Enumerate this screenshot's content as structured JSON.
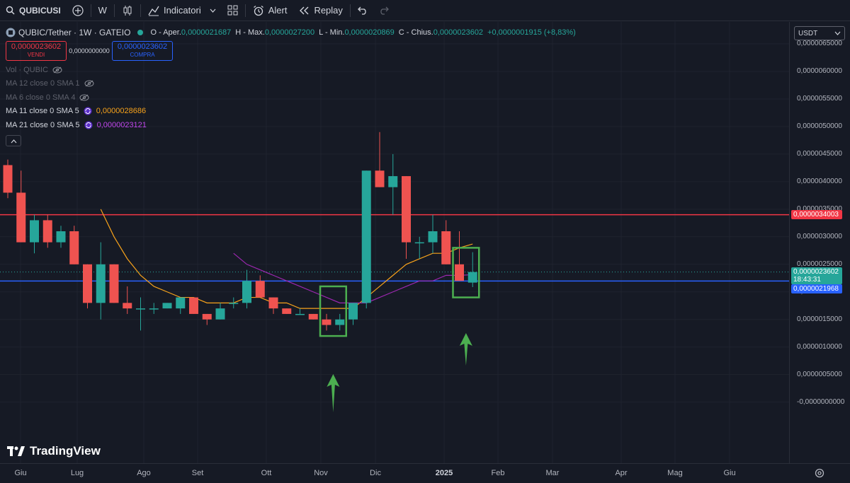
{
  "toolbar": {
    "symbol": "QUBICUSI",
    "interval": "W",
    "indicators_label": "Indicatori",
    "alert_label": "Alert",
    "replay_label": "Replay"
  },
  "legend": {
    "title": "QUBIC/Tether · 1W · GATEIO",
    "open_key": "O - Aper.",
    "open_val": "0,0000021687",
    "high_key": "H - Max.",
    "high_val": "0,0000027200",
    "low_key": "L - Min.",
    "low_val": "0,0000020869",
    "close_key": "C - Chius.",
    "close_val": "0,0000023602",
    "change_val": "+0,0000001915 (+8,83%)",
    "sell_price": "0,0000023602",
    "sell_label": "VENDI",
    "spread": "0,0000000000",
    "buy_price": "0,0000023602",
    "buy_label": "COMPRA",
    "indicators": [
      {
        "label": "Vol · QUBIC",
        "value": "",
        "visible": false
      },
      {
        "label": "MA 12 close 0 SMA 1",
        "value": "",
        "visible": false
      },
      {
        "label": "MA 6 close 0 SMA 4",
        "value": "",
        "visible": false
      },
      {
        "label": "MA 11 close 0 SMA 5",
        "value": "0,0000028686",
        "visible": true,
        "color": "#f7a21b"
      },
      {
        "label": "MA 21 close 0 SMA 5",
        "value": "0,0000023121",
        "visible": true,
        "color": "#9c27b0"
      }
    ]
  },
  "price_axis": {
    "currency": "USDT",
    "labels": [
      "0,0000065000",
      "0,0000060000",
      "0,0000055000",
      "0,0000050000",
      "0,0000045000",
      "0,0000040000",
      "0,0000035000",
      "0,0000030000",
      "0,0000025000",
      "0,0000020000",
      "0,0000015000",
      "0,0000010000",
      "0,0000005000",
      "-0,0000000000"
    ],
    "red_line_tag": "0,0000034003",
    "current_tag": "0,0000023602",
    "countdown": "18:43:31",
    "blue_line_tag": "0,0000021968"
  },
  "time_axis": {
    "labels": [
      "Giu",
      "Lug",
      "Ago",
      "Set",
      "Ott",
      "Nov",
      "Dic",
      "2025",
      "Feb",
      "Mar",
      "Apr",
      "Mag",
      "Giu"
    ]
  },
  "watermark": "TradingView",
  "colors": {
    "up": "#26a69a",
    "down": "#ef5350",
    "red_line": "#f23645",
    "blue_line": "#2962ff",
    "ma11": "#f7a21b",
    "ma21": "#9c27b0",
    "highlight": "#4caf50"
  },
  "chart_data": {
    "type": "candlestick",
    "title": "QUBIC/Tether · 1W · GATEIO",
    "y_unit": "USDT",
    "ylim": [
      -8e-07,
      6.5e-06
    ],
    "x": [
      "Giu",
      "Lug",
      "Ago",
      "Set",
      "Ott",
      "Nov",
      "Dic",
      "2025",
      "Feb",
      "Mar",
      "Apr",
      "Mag",
      "Giu"
    ],
    "horizontal_lines": [
      3.4003e-06,
      2.1968e-06
    ],
    "candles": [
      {
        "o": 4.3e-06,
        "h": 4.4e-06,
        "l": 3.7e-06,
        "c": 3.8e-06
      },
      {
        "o": 3.8e-06,
        "h": 4.2e-06,
        "l": 2.9e-06,
        "c": 2.9e-06
      },
      {
        "o": 2.9e-06,
        "h": 3.4e-06,
        "l": 2.7e-06,
        "c": 3.3e-06
      },
      {
        "o": 3.3e-06,
        "h": 3.4e-06,
        "l": 2.8e-06,
        "c": 2.9e-06
      },
      {
        "o": 2.9e-06,
        "h": 3.2e-06,
        "l": 2.8e-06,
        "c": 3.1e-06
      },
      {
        "o": 3.1e-06,
        "h": 3.2e-06,
        "l": 2.5e-06,
        "c": 2.5e-06
      },
      {
        "o": 2.5e-06,
        "h": 2.5e-06,
        "l": 1.7e-06,
        "c": 1.8e-06
      },
      {
        "o": 1.8e-06,
        "h": 2.9e-06,
        "l": 1.5e-06,
        "c": 2.5e-06
      },
      {
        "o": 2.5e-06,
        "h": 2.5e-06,
        "l": 1.8e-06,
        "c": 1.8e-06
      },
      {
        "o": 1.8e-06,
        "h": 2.1e-06,
        "l": 1.6e-06,
        "c": 1.7e-06
      },
      {
        "o": 1.7e-06,
        "h": 1.9e-06,
        "l": 1.3e-06,
        "c": 1.7e-06
      },
      {
        "o": 1.7e-06,
        "h": 1.8e-06,
        "l": 1.6e-06,
        "c": 1.7e-06
      },
      {
        "o": 1.7e-06,
        "h": 1.8e-06,
        "l": 1.7e-06,
        "c": 1.8e-06
      },
      {
        "o": 1.7e-06,
        "h": 1.9e-06,
        "l": 1.6e-06,
        "c": 1.9e-06
      },
      {
        "o": 1.9e-06,
        "h": 1.9e-06,
        "l": 1.6e-06,
        "c": 1.6e-06
      },
      {
        "o": 1.6e-06,
        "h": 1.6e-06,
        "l": 1.4e-06,
        "c": 1.5e-06
      },
      {
        "o": 1.5e-06,
        "h": 1.8e-06,
        "l": 1.5e-06,
        "c": 1.7e-06
      },
      {
        "o": 1.8e-06,
        "h": 1.9e-06,
        "l": 1.7e-06,
        "c": 1.8e-06
      },
      {
        "o": 1.8e-06,
        "h": 2.4e-06,
        "l": 1.7e-06,
        "c": 2.2e-06
      },
      {
        "o": 2.2e-06,
        "h": 2.3e-06,
        "l": 1.9e-06,
        "c": 1.9e-06
      },
      {
        "o": 1.9e-06,
        "h": 1.9e-06,
        "l": 1.6e-06,
        "c": 1.7e-06
      },
      {
        "o": 1.7e-06,
        "h": 1.7e-06,
        "l": 1.6e-06,
        "c": 1.6e-06
      },
      {
        "o": 1.6e-06,
        "h": 1.7e-06,
        "l": 1.6e-06,
        "c": 1.6e-06
      },
      {
        "o": 1.6e-06,
        "h": 1.6e-06,
        "l": 1.5e-06,
        "c": 1.5e-06
      },
      {
        "o": 1.5e-06,
        "h": 1.6e-06,
        "l": 1.3e-06,
        "c": 1.4e-06
      },
      {
        "o": 1.4e-06,
        "h": 1.6e-06,
        "l": 1.3e-06,
        "c": 1.5e-06
      },
      {
        "o": 1.5e-06,
        "h": 1.8e-06,
        "l": 1.4e-06,
        "c": 1.8e-06
      },
      {
        "o": 1.8e-06,
        "h": 4.2e-06,
        "l": 1.7e-06,
        "c": 4.2e-06
      },
      {
        "o": 4.2e-06,
        "h": 4.9e-06,
        "l": 3.9e-06,
        "c": 3.9e-06
      },
      {
        "o": 3.9e-06,
        "h": 4.5e-06,
        "l": 3.4e-06,
        "c": 4.1e-06
      },
      {
        "o": 4.1e-06,
        "h": 4.1e-06,
        "l": 2.6e-06,
        "c": 2.9e-06
      },
      {
        "o": 2.9e-06,
        "h": 3e-06,
        "l": 2.6e-06,
        "c": 2.9e-06
      },
      {
        "o": 2.9e-06,
        "h": 3.4e-06,
        "l": 2.7e-06,
        "c": 3.1e-06
      },
      {
        "o": 3.1e-06,
        "h": 3.3e-06,
        "l": 2.5e-06,
        "c": 2.5e-06
      },
      {
        "o": 2.5e-06,
        "h": 3.1e-06,
        "l": 2.2e-06,
        "c": 2.2e-06
      },
      {
        "o": 2.1687e-06,
        "h": 2.72e-06,
        "l": 2.0869e-06,
        "c": 2.3602e-06
      }
    ],
    "ma11": [
      null,
      null,
      null,
      null,
      null,
      null,
      null,
      3.5e-06,
      3e-06,
      2.6e-06,
      2.3e-06,
      2.1e-06,
      2e-06,
      1.9e-06,
      1.9e-06,
      1.8e-06,
      1.8e-06,
      1.8e-06,
      1.9e-06,
      1.9e-06,
      1.8e-06,
      1.8e-06,
      1.7e-06,
      1.7e-06,
      1.7e-06,
      1.7e-06,
      1.7e-06,
      1.9e-06,
      2.1e-06,
      2.3e-06,
      2.5e-06,
      2.6e-06,
      2.7e-06,
      2.7e-06,
      2.8e-06,
      2.8686e-06
    ],
    "ma21": [
      null,
      null,
      null,
      null,
      null,
      null,
      null,
      null,
      null,
      null,
      null,
      null,
      null,
      null,
      null,
      null,
      null,
      2.7e-06,
      2.5e-06,
      2.4e-06,
      2.3e-06,
      2.2e-06,
      2.1e-06,
      2e-06,
      1.9e-06,
      1.8e-06,
      1.8e-06,
      1.8e-06,
      1.9e-06,
      2e-06,
      2.1e-06,
      2.2e-06,
      2.2e-06,
      2.3e-06,
      2.3e-06,
      2.3121e-06
    ],
    "highlight_boxes": [
      {
        "from_index": 24,
        "to_index": 25,
        "y_top": 2.1e-06,
        "y_bottom": 1.2e-06
      },
      {
        "from_index": 34,
        "to_index": 35,
        "y_top": 2.8e-06,
        "y_bottom": 1.9e-06
      }
    ],
    "arrows_up_under_index": [
      24.5,
      34.5
    ]
  }
}
